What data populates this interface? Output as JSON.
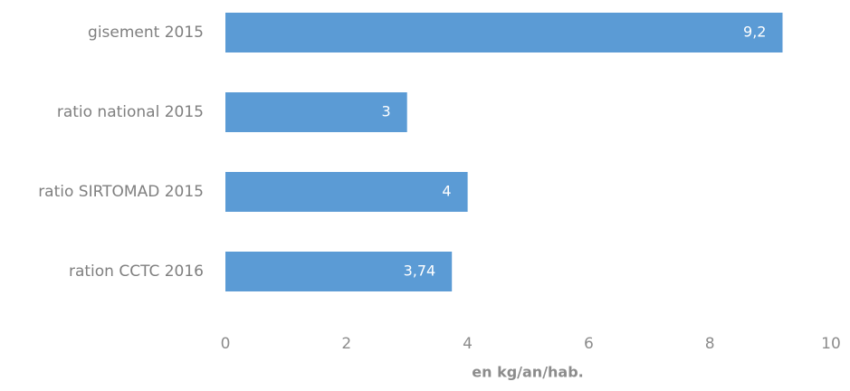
{
  "chart_data": {
    "type": "bar",
    "orientation": "horizontal",
    "categories": [
      "gisement 2015",
      "ratio national 2015",
      "ratio SIRTOMAD 2015",
      "ration CCTC 2016"
    ],
    "values": [
      9.2,
      3,
      4,
      3.74
    ],
    "value_labels": [
      "9,2",
      "3",
      "4",
      "3,74"
    ],
    "color": "#5b9bd5",
    "x_label": "en kg/an/hab.",
    "xlim": [
      0,
      10
    ],
    "xticks": [
      0,
      2,
      4,
      6,
      8,
      10
    ],
    "grid": false
  }
}
